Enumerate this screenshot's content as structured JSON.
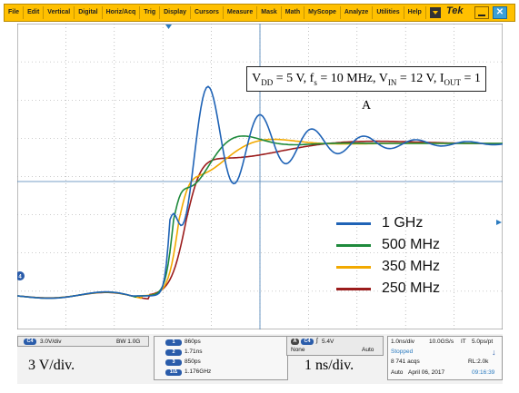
{
  "menu": {
    "items": [
      "File",
      "Edit",
      "Vertical",
      "Digital",
      "Horiz/Acq",
      "Trig",
      "Display",
      "Cursors",
      "Measure",
      "Mask",
      "Math",
      "MyScope",
      "Analyze",
      "Utilities",
      "Help"
    ],
    "brand": "Tek"
  },
  "annotation": {
    "parts": [
      "V",
      "DD",
      " = 5 V, f",
      "s",
      " = 10 MHz, V",
      "IN",
      " = 12 V, I",
      "OUT",
      " = 1 A"
    ]
  },
  "legend": [
    {
      "label": "1 GHz",
      "color": "#1f63b6"
    },
    {
      "label": "500 MHz",
      "color": "#1e8a3c"
    },
    {
      "label": "350 MHz",
      "color": "#f2a900"
    },
    {
      "label": "250 MHz",
      "color": "#9b1c1c"
    }
  ],
  "status": {
    "channel_badge": "C4",
    "scale": "3.0V/div",
    "bw": "BW 1.0G",
    "vertical_caption": "3 V/div.",
    "measurements": [
      {
        "id": "1",
        "value": "860ps"
      },
      {
        "id": "2",
        "value": "1.71ns"
      },
      {
        "id": "3",
        "value": "850ps"
      },
      {
        "id": "1/Δ",
        "value": "1.176GHz"
      }
    ],
    "trigger_icon": "A",
    "trigger_ch": "C4",
    "trigger_level": "5.4V",
    "trigger_coupling": "None",
    "trigger_mode": "Auto",
    "horizontal_caption": "1 ns/div.",
    "timebase": "1.0ns/div",
    "sample_rate": "10.0GS/s",
    "mode": "IT",
    "resolution": "5.0ps/pt",
    "run_state": "Stopped",
    "acqs": "8 741 acqs",
    "record_length": "RL:2.0k",
    "auto": "Auto",
    "date": "April 06, 2017",
    "time": "09:16:39"
  },
  "chart_data": {
    "type": "line",
    "title": "",
    "xlabel": "",
    "ylabel": "",
    "grid": true,
    "series": [
      {
        "name": "1 GHz",
        "color": "#1f63b6"
      },
      {
        "name": "500 MHz",
        "color": "#1e8a3c"
      },
      {
        "name": "350 MHz",
        "color": "#f2a900"
      },
      {
        "name": "250 MHz",
        "color": "#9b1c1c"
      }
    ]
  }
}
